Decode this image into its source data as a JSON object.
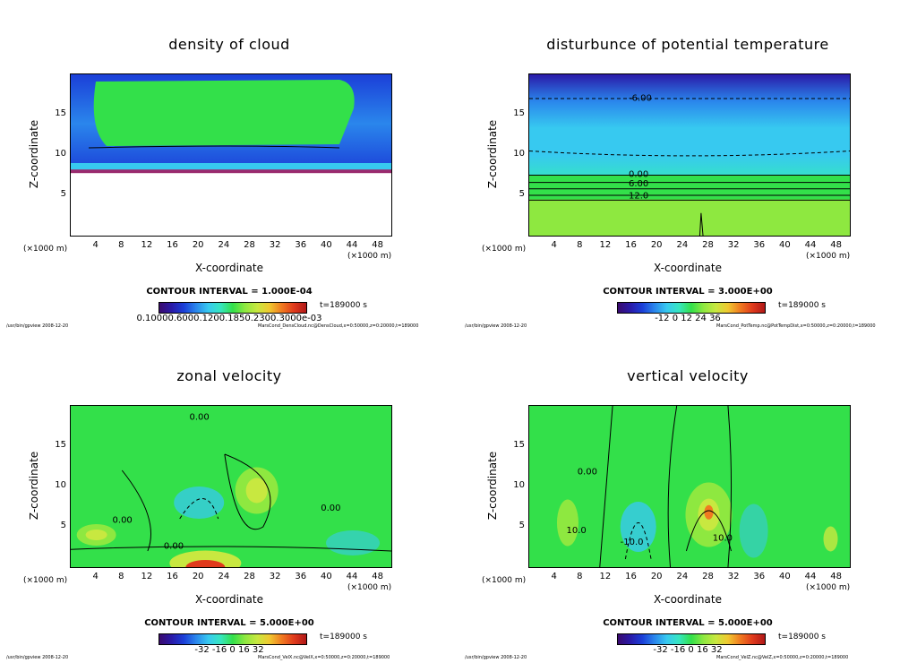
{
  "panels": [
    {
      "title": "density of cloud",
      "ylabel": "Z-coordinate",
      "xlabel": "X-coordinate",
      "yticks": [
        "15",
        "10",
        "5"
      ],
      "xticks": [
        "4",
        "8",
        "12",
        "16",
        "20",
        "24",
        "28",
        "32",
        "36",
        "40",
        "44",
        "48"
      ],
      "x_unit_left": "(×1000 m)",
      "x_unit_right": "(×1000 m)",
      "contour_interval": "CONTOUR INTERVAL = 1.000E-04",
      "time": "t=189000 s",
      "colorbar_ticks": "0.10000.6000.1200.1850.2300.3000e-03",
      "footer_left": "/usr/bin/gpview  2008-12-20",
      "footer_right": "MarsCond_DensCloud.nc@DensCloud,x=0:50000,z=0:20000,t=189000",
      "contour_labels": []
    },
    {
      "title": "disturbunce of potential temperature",
      "ylabel": "Z-coordinate",
      "xlabel": "X-coordinate",
      "yticks": [
        "15",
        "10",
        "5"
      ],
      "xticks": [
        "4",
        "8",
        "12",
        "16",
        "20",
        "24",
        "28",
        "32",
        "36",
        "40",
        "44",
        "48"
      ],
      "x_unit_left": "(×1000 m)",
      "x_unit_right": "(×1000 m)",
      "contour_interval": "CONTOUR INTERVAL = 3.000E+00",
      "time": "t=189000 s",
      "colorbar_ticks": "-12   0   12   24   36",
      "footer_left": "/usr/bin/gpview  2008-12-20",
      "footer_right": "MarsCond_PotTemp.nc@PotTempDist,x=0:50000,z=0:20000,t=189000",
      "contour_labels": [
        "-6.00",
        "0.00",
        "6.00",
        "12.0"
      ]
    },
    {
      "title": "zonal velocity",
      "ylabel": "Z-coordinate",
      "xlabel": "X-coordinate",
      "yticks": [
        "15",
        "10",
        "5"
      ],
      "xticks": [
        "4",
        "8",
        "12",
        "16",
        "20",
        "24",
        "28",
        "32",
        "36",
        "40",
        "44",
        "48"
      ],
      "x_unit_left": "(×1000 m)",
      "x_unit_right": "(×1000 m)",
      "contour_interval": "CONTOUR INTERVAL = 5.000E+00",
      "time": "t=189000 s",
      "colorbar_ticks": "-32   -16   0   16   32",
      "footer_left": "/usr/bin/gpview  2008-12-20",
      "footer_right": "MarsCond_VelX.nc@VelX,x=0:50000,z=0:20000,t=189000",
      "contour_labels": [
        "0.00",
        "0.00",
        "0.00",
        "0.00"
      ]
    },
    {
      "title": "vertical velocity",
      "ylabel": "Z-coordinate",
      "xlabel": "X-coordinate",
      "yticks": [
        "15",
        "10",
        "5"
      ],
      "xticks": [
        "4",
        "8",
        "12",
        "16",
        "20",
        "24",
        "28",
        "32",
        "36",
        "40",
        "44",
        "48"
      ],
      "x_unit_left": "(×1000 m)",
      "x_unit_right": "(×1000 m)",
      "contour_interval": "CONTOUR INTERVAL = 5.000E+00",
      "time": "t=189000 s",
      "colorbar_ticks": "-32   -16   0   16   32",
      "footer_left": "/usr/bin/gpview  2008-12-20",
      "footer_right": "MarsCond_VelZ.nc@VelZ,x=0:50000,z=0:20000,t=189000",
      "contour_labels": [
        "0.00",
        "10.0",
        "-10.0",
        "10.0"
      ]
    }
  ],
  "chart_data": [
    {
      "type": "heatmap",
      "title": "density of cloud",
      "xlabel": "X-coordinate",
      "ylabel": "Z-coordinate",
      "xlim": [
        0,
        50000
      ],
      "ylim": [
        0,
        20000
      ],
      "units": "m",
      "contour_interval": 0.0001
    },
    {
      "type": "heatmap",
      "title": "disturbunce of potential temperature",
      "xlabel": "X-coordinate",
      "ylabel": "Z-coordinate",
      "xlim": [
        0,
        50000
      ],
      "ylim": [
        0,
        20000
      ],
      "units": "m",
      "contour_interval": 3.0,
      "colorbar": [
        -12,
        0,
        12,
        24,
        36
      ]
    },
    {
      "type": "heatmap",
      "title": "zonal velocity",
      "xlabel": "X-coordinate",
      "ylabel": "Z-coordinate",
      "xlim": [
        0,
        50000
      ],
      "ylim": [
        0,
        20000
      ],
      "units": "m",
      "contour_interval": 5.0,
      "colorbar": [
        -32,
        -16,
        0,
        16,
        32
      ]
    },
    {
      "type": "heatmap",
      "title": "vertical velocity",
      "xlabel": "X-coordinate",
      "ylabel": "Z-coordinate",
      "xlim": [
        0,
        50000
      ],
      "ylim": [
        0,
        20000
      ],
      "units": "m",
      "contour_interval": 5.0,
      "colorbar": [
        -32,
        -16,
        0,
        16,
        32
      ]
    }
  ],
  "colors": {
    "field_green": "#33e04a",
    "field_cyan": "#37c9f0",
    "field_blue": "#1b3fd8",
    "field_yellow": "#c8e840",
    "field_red": "#e03a1c"
  }
}
